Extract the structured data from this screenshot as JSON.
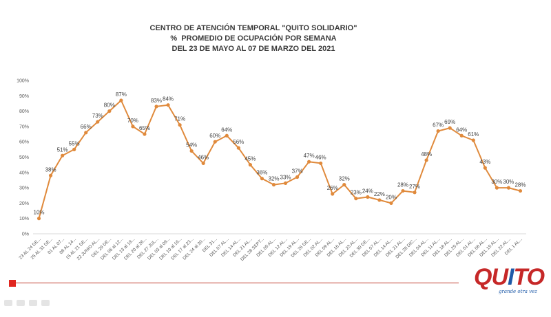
{
  "chart_data": {
    "type": "line",
    "title_lines": [
      "CENTRO DE ATENCIÓN TEMPORAL \"QUITO SOLIDARIO\"",
      "%  PROMEDIO DE OCUPACIÓN POR SEMANA",
      "DEL 23 DE MAYO AL 07 DE MARZO DEL 2021"
    ],
    "x": [
      "23 AL 24 DE...",
      "25 AL 31 DE...",
      "01 AL 07...",
      "08 AL 14...",
      "15 AL 21 DE...",
      "22 JUNIO AL...",
      "DEL 29 DE...",
      "DEL 06 al 12...",
      "DEL 13 al 19...",
      "DEL 20 al 26...",
      "DEL 27 JUL...",
      "DEL 03 al 09...",
      "DEL 10 al 16...",
      "DEL 17 al 23...",
      "DEL 24 al 30...",
      "DEL 31...",
      "DEL 07 AL...",
      "DEL 14 AL...",
      "DEL 21 AL...",
      "DEL 28 SEPT...",
      "DEL 05 AL...",
      "DEL 12 AL...",
      "DEL 19 AL...",
      "DEL 26 DE...",
      "DEL 02 AL...",
      "DEL 09 AL...",
      "DEL 16 AL...",
      "DEL 23 AL...",
      "DEL 30 DE...",
      "DEL 07 AL...",
      "DEL 14 AL...",
      "DEL 21 AL...",
      "DEL 28 DIC...",
      "DEL 04 AL...",
      "DEL 11 AL...",
      "DEL 18 AL...",
      "DEL 25 AL...",
      "DEL 01 AL...",
      "DEL 08 AL...",
      "DEL 15 AL...",
      "DEL 22 AL...",
      "DEL 1 AL..."
    ],
    "values": [
      10,
      38,
      51,
      55,
      66,
      73,
      80,
      87,
      70,
      65,
      83,
      84,
      71,
      54,
      46,
      60,
      64,
      56,
      45,
      36,
      32,
      33,
      37,
      47,
      46,
      26,
      32,
      23,
      24,
      22,
      20,
      28,
      27,
      48,
      67,
      69,
      64,
      61,
      43,
      30,
      30,
      28
    ],
    "data_labels": [
      "10%",
      "38%",
      "51%",
      "55%",
      "66%",
      "73%",
      "80%",
      "87%",
      "70%",
      "65%",
      "83%",
      "84%",
      "71%",
      "54%",
      "46%",
      "60%",
      "64%",
      "56%",
      "45%",
      "36%",
      "32%",
      "33%",
      "37%",
      "47%",
      "46%",
      "26%",
      "32%",
      "23%",
      "24%",
      "22%",
      "20%",
      "28%",
      "27%",
      "48%",
      "67%",
      "69%",
      "64%",
      "61%",
      "43%",
      "30%",
      "30%",
      "28%"
    ],
    "y_ticks": [
      "0%",
      "10%",
      "20%",
      "30%",
      "40%",
      "50%",
      "60%",
      "70%",
      "80%",
      "90%",
      "100%"
    ],
    "ylim": [
      0,
      100
    ],
    "color": "#e08a3c",
    "grid": false,
    "legend": "none"
  },
  "logo": {
    "word_part1": "QU",
    "word_part2": "I",
    "word_part3": "TO",
    "tagline": "grande otra vez"
  }
}
